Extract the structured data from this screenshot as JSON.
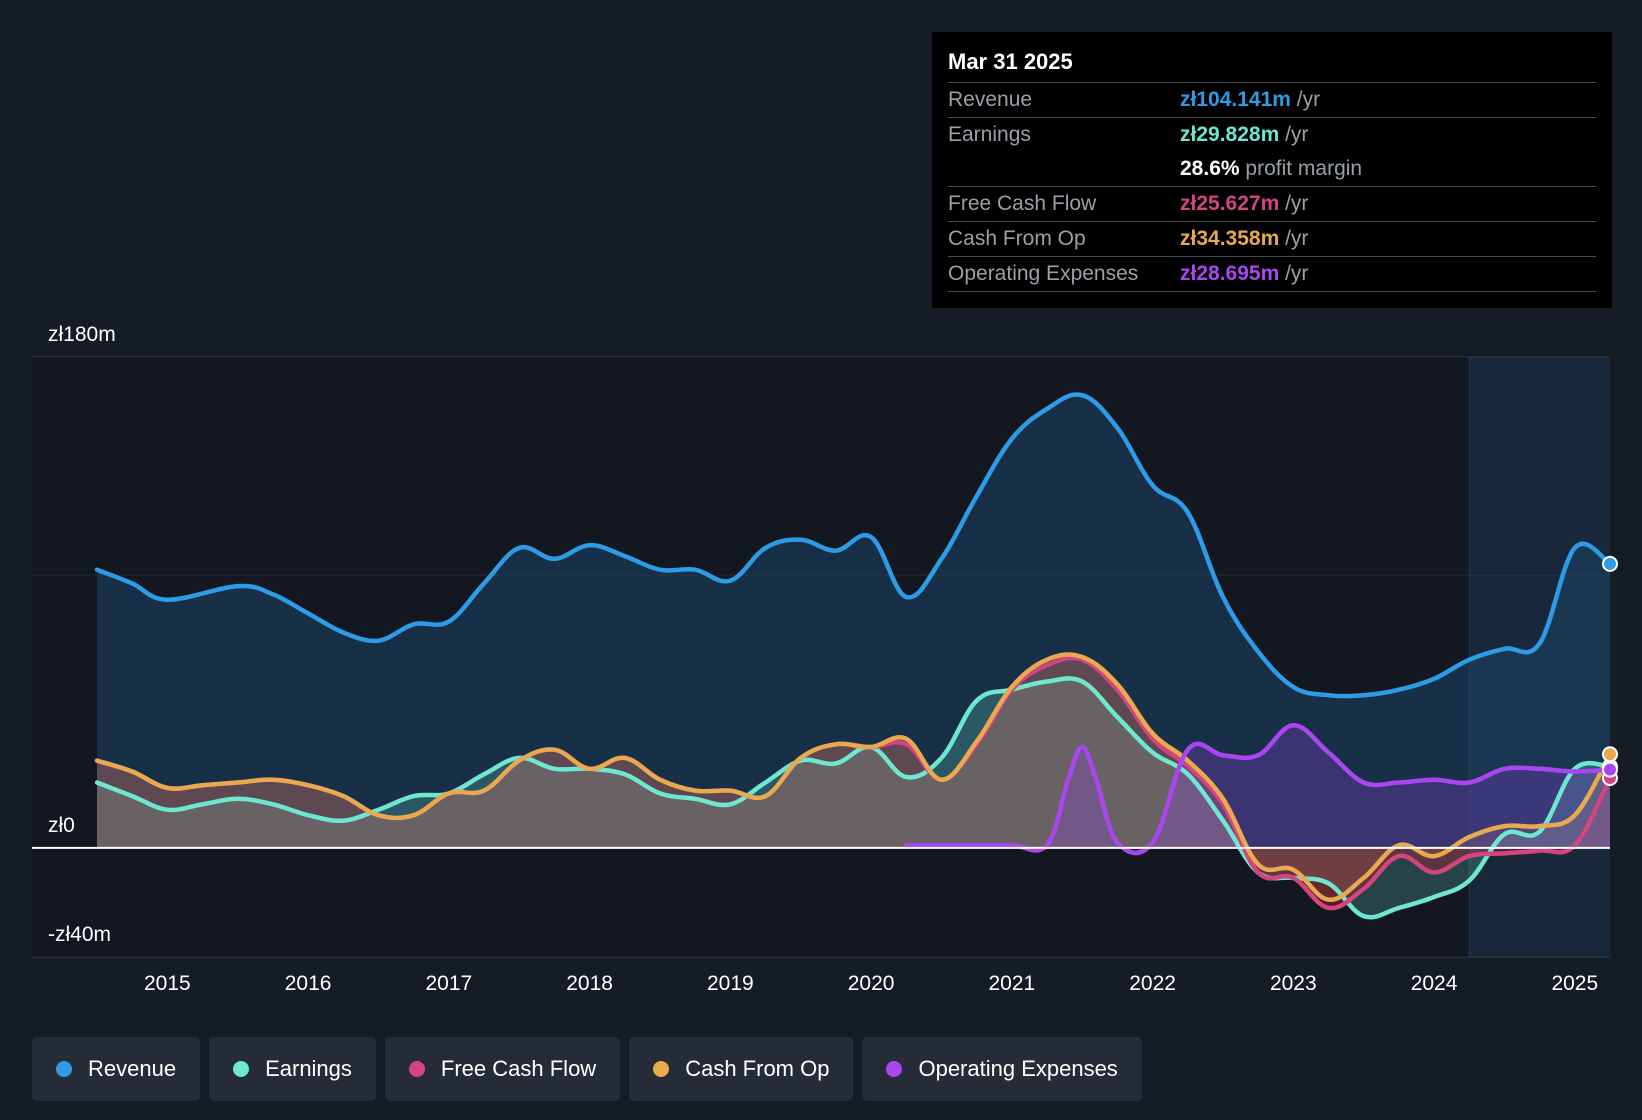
{
  "tooltip": {
    "date": "Mar 31 2025",
    "rows": [
      {
        "label": "Revenue",
        "value": "zł104.141m",
        "unit": "/yr",
        "color": "#2d9be6"
      },
      {
        "label": "Earnings",
        "value": "zł29.828m",
        "unit": "/yr",
        "color": "#6ee6d0"
      },
      {
        "label": "",
        "value": "28.6%",
        "unit": "profit margin",
        "color": "#ffffff"
      },
      {
        "label": "Free Cash Flow",
        "value": "zł25.627m",
        "unit": "/yr",
        "color": "#d2457e"
      },
      {
        "label": "Cash From Op",
        "value": "zł34.358m",
        "unit": "/yr",
        "color": "#e8a94f"
      },
      {
        "label": "Operating Expenses",
        "value": "zł28.695m",
        "unit": "/yr",
        "color": "#a946f0"
      }
    ]
  },
  "legend": [
    {
      "label": "Revenue",
      "color": "#2d9be6"
    },
    {
      "label": "Earnings",
      "color": "#6ee6d0"
    },
    {
      "label": "Free Cash Flow",
      "color": "#d2457e"
    },
    {
      "label": "Cash From Op",
      "color": "#e8a94f"
    },
    {
      "label": "Operating Expenses",
      "color": "#a946f0"
    }
  ],
  "chart_data": {
    "type": "area",
    "title": "",
    "xlabel": "",
    "ylabel": "",
    "y_tick_labels": [
      "zł180m",
      "zł0",
      "-zł40m"
    ],
    "ylim": [
      -40,
      180
    ],
    "xlim": [
      2014.5,
      2025.25
    ],
    "x_tick_labels": [
      "2015",
      "2016",
      "2017",
      "2018",
      "2019",
      "2020",
      "2021",
      "2022",
      "2023",
      "2024",
      "2025"
    ],
    "x_ticks": [
      2015,
      2016,
      2017,
      2018,
      2019,
      2020,
      2021,
      2022,
      2023,
      2024,
      2025
    ],
    "forecast_start": 2024.25,
    "series": [
      {
        "name": "Revenue",
        "key": "revenue",
        "color": "#2d9be6",
        "points": [
          [
            2014.5,
            102
          ],
          [
            2014.75,
            97
          ],
          [
            2015.0,
            91
          ],
          [
            2015.5,
            96
          ],
          [
            2015.75,
            93
          ],
          [
            2016.0,
            86
          ],
          [
            2016.25,
            79
          ],
          [
            2016.5,
            76
          ],
          [
            2016.75,
            82
          ],
          [
            2017.0,
            83
          ],
          [
            2017.25,
            97
          ],
          [
            2017.5,
            110
          ],
          [
            2017.75,
            106
          ],
          [
            2018.0,
            111
          ],
          [
            2018.25,
            107
          ],
          [
            2018.5,
            102
          ],
          [
            2018.75,
            102
          ],
          [
            2019.0,
            98
          ],
          [
            2019.25,
            110
          ],
          [
            2019.5,
            113
          ],
          [
            2019.75,
            109
          ],
          [
            2020.0,
            114
          ],
          [
            2020.25,
            92
          ],
          [
            2020.5,
            106
          ],
          [
            2020.75,
            129
          ],
          [
            2021.0,
            150
          ],
          [
            2021.25,
            161
          ],
          [
            2021.5,
            166
          ],
          [
            2021.75,
            154
          ],
          [
            2022.0,
            133
          ],
          [
            2022.25,
            123
          ],
          [
            2022.5,
            92
          ],
          [
            2022.75,
            72
          ],
          [
            2023.0,
            59
          ],
          [
            2023.25,
            56
          ],
          [
            2023.5,
            56
          ],
          [
            2023.75,
            58
          ],
          [
            2024.0,
            62
          ],
          [
            2024.25,
            69
          ],
          [
            2024.5,
            73
          ],
          [
            2024.75,
            75
          ],
          [
            2025.0,
            110
          ],
          [
            2025.25,
            104.141
          ]
        ]
      },
      {
        "name": "Earnings",
        "key": "earnings",
        "color": "#6ee6d0",
        "points": [
          [
            2014.5,
            24
          ],
          [
            2014.75,
            19
          ],
          [
            2015.0,
            14
          ],
          [
            2015.25,
            16
          ],
          [
            2015.5,
            18
          ],
          [
            2015.75,
            16
          ],
          [
            2016.0,
            12
          ],
          [
            2016.25,
            10
          ],
          [
            2016.5,
            14
          ],
          [
            2016.75,
            19
          ],
          [
            2017.0,
            20
          ],
          [
            2017.25,
            27
          ],
          [
            2017.5,
            33
          ],
          [
            2017.75,
            29
          ],
          [
            2018.0,
            29
          ],
          [
            2018.25,
            27
          ],
          [
            2018.5,
            20
          ],
          [
            2018.75,
            18
          ],
          [
            2019.0,
            16
          ],
          [
            2019.25,
            24
          ],
          [
            2019.5,
            32
          ],
          [
            2019.75,
            31
          ],
          [
            2020.0,
            37
          ],
          [
            2020.25,
            26
          ],
          [
            2020.5,
            33
          ],
          [
            2020.75,
            54
          ],
          [
            2021.0,
            58
          ],
          [
            2021.25,
            61
          ],
          [
            2021.5,
            61
          ],
          [
            2021.75,
            48
          ],
          [
            2022.0,
            35
          ],
          [
            2022.25,
            27
          ],
          [
            2022.5,
            10
          ],
          [
            2022.75,
            -9
          ],
          [
            2023.0,
            -11
          ],
          [
            2023.25,
            -13
          ],
          [
            2023.5,
            -25
          ],
          [
            2023.75,
            -22
          ],
          [
            2024.0,
            -18
          ],
          [
            2024.25,
            -12
          ],
          [
            2024.5,
            5
          ],
          [
            2024.75,
            6
          ],
          [
            2025.0,
            29
          ],
          [
            2025.25,
            29.828
          ]
        ]
      },
      {
        "name": "Free Cash Flow",
        "key": "fcf",
        "color": "#d2457e",
        "points": [
          [
            2014.5,
            32
          ],
          [
            2014.75,
            28
          ],
          [
            2015.0,
            22
          ],
          [
            2015.25,
            23
          ],
          [
            2015.5,
            24
          ],
          [
            2015.75,
            25
          ],
          [
            2016.0,
            23
          ],
          [
            2016.25,
            19
          ],
          [
            2016.5,
            12
          ],
          [
            2016.75,
            12
          ],
          [
            2017.0,
            20
          ],
          [
            2017.25,
            21
          ],
          [
            2017.5,
            32
          ],
          [
            2017.75,
            36
          ],
          [
            2018.0,
            29
          ],
          [
            2018.25,
            33
          ],
          [
            2018.5,
            25
          ],
          [
            2018.75,
            21
          ],
          [
            2019.0,
            21
          ],
          [
            2019.25,
            19
          ],
          [
            2019.5,
            33
          ],
          [
            2019.75,
            38
          ],
          [
            2020.0,
            37
          ],
          [
            2020.25,
            38
          ],
          [
            2020.5,
            25
          ],
          [
            2020.75,
            38
          ],
          [
            2021.0,
            58
          ],
          [
            2021.25,
            67
          ],
          [
            2021.5,
            69
          ],
          [
            2021.75,
            58
          ],
          [
            2022.0,
            40
          ],
          [
            2022.25,
            30
          ],
          [
            2022.5,
            16
          ],
          [
            2022.75,
            -9
          ],
          [
            2023.0,
            -11
          ],
          [
            2023.25,
            -22
          ],
          [
            2023.5,
            -15
          ],
          [
            2023.75,
            -3
          ],
          [
            2024.0,
            -9
          ],
          [
            2024.25,
            -3
          ],
          [
            2024.5,
            -2
          ],
          [
            2024.75,
            -1
          ],
          [
            2025.0,
            1
          ],
          [
            2025.25,
            25.627
          ]
        ]
      },
      {
        "name": "Cash From Op",
        "key": "cfo",
        "color": "#e8a94f",
        "points": [
          [
            2014.5,
            32
          ],
          [
            2014.75,
            28
          ],
          [
            2015.0,
            22
          ],
          [
            2015.25,
            23
          ],
          [
            2015.5,
            24
          ],
          [
            2015.75,
            25
          ],
          [
            2016.0,
            23
          ],
          [
            2016.25,
            19
          ],
          [
            2016.5,
            12
          ],
          [
            2016.75,
            12
          ],
          [
            2017.0,
            20
          ],
          [
            2017.25,
            21
          ],
          [
            2017.5,
            32
          ],
          [
            2017.75,
            36
          ],
          [
            2018.0,
            29
          ],
          [
            2018.25,
            33
          ],
          [
            2018.5,
            25
          ],
          [
            2018.75,
            21
          ],
          [
            2019.0,
            21
          ],
          [
            2019.25,
            19
          ],
          [
            2019.5,
            33
          ],
          [
            2019.75,
            38
          ],
          [
            2020.0,
            37
          ],
          [
            2020.25,
            40
          ],
          [
            2020.5,
            25
          ],
          [
            2020.75,
            39
          ],
          [
            2021.0,
            59
          ],
          [
            2021.25,
            69
          ],
          [
            2021.5,
            70
          ],
          [
            2021.75,
            60
          ],
          [
            2022.0,
            42
          ],
          [
            2022.25,
            32
          ],
          [
            2022.5,
            18
          ],
          [
            2022.75,
            -6
          ],
          [
            2023.0,
            -8
          ],
          [
            2023.25,
            -19
          ],
          [
            2023.5,
            -11
          ],
          [
            2023.75,
            1
          ],
          [
            2024.0,
            -3
          ],
          [
            2024.25,
            4
          ],
          [
            2024.5,
            8
          ],
          [
            2024.75,
            8
          ],
          [
            2025.0,
            12
          ],
          [
            2025.25,
            34.358
          ]
        ]
      },
      {
        "name": "Operating Expenses",
        "key": "opex",
        "color": "#a946f0",
        "points": [
          [
            2020.25,
            1
          ],
          [
            2020.5,
            1
          ],
          [
            2020.75,
            1
          ],
          [
            2021.0,
            1
          ],
          [
            2021.25,
            1
          ],
          [
            2021.4,
            25
          ],
          [
            2021.5,
            37
          ],
          [
            2021.6,
            25
          ],
          [
            2021.75,
            2
          ],
          [
            2022.0,
            2
          ],
          [
            2022.25,
            36
          ],
          [
            2022.5,
            34
          ],
          [
            2022.75,
            34
          ],
          [
            2023.0,
            45
          ],
          [
            2023.25,
            35
          ],
          [
            2023.5,
            24
          ],
          [
            2023.75,
            24
          ],
          [
            2024.0,
            25
          ],
          [
            2024.25,
            24
          ],
          [
            2024.5,
            29
          ],
          [
            2024.75,
            29
          ],
          [
            2025.0,
            28
          ],
          [
            2025.25,
            28.695
          ]
        ]
      }
    ]
  }
}
